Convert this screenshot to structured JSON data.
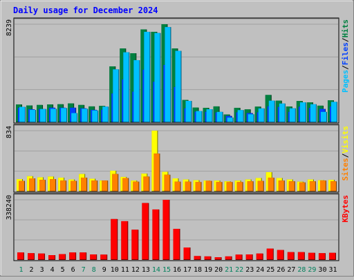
{
  "chart_data": {
    "type": "bar",
    "title": "Daily usage for December 2024",
    "days": [
      1,
      2,
      3,
      4,
      5,
      6,
      7,
      8,
      9,
      10,
      11,
      12,
      13,
      14,
      15,
      16,
      17,
      18,
      19,
      20,
      21,
      22,
      23,
      24,
      25,
      26,
      27,
      28,
      29,
      30,
      31
    ],
    "weekend_days": [
      1,
      7,
      8,
      14,
      15,
      21,
      22,
      28,
      29
    ],
    "colors": {
      "title": "#0000ff",
      "hits": "#008040",
      "files": "#0040ff",
      "pages": "#00c0ff",
      "visits": "#ffff00",
      "sites": "#ff8000",
      "kbytes": "#ff0000",
      "weekend_label": "#00805c",
      "weekday_label": "#000000"
    },
    "panels": [
      {
        "id": "hits-files-pages",
        "max_label": "8239",
        "ymax": 8239,
        "legend": [
          {
            "label": "Pages",
            "color": "#00c0ff"
          },
          {
            "label": "/",
            "color": "#000000"
          },
          {
            "label": "Files",
            "color": "#0040ff"
          },
          {
            "label": "/",
            "color": "#000000"
          },
          {
            "label": "Hits",
            "color": "#008040"
          }
        ],
        "series": [
          {
            "name": "Hits",
            "color": "#008040",
            "values": [
              1500,
              1420,
              1460,
              1500,
              1520,
              1590,
              1460,
              1340,
              1380,
              4700,
              6200,
              5800,
              7800,
              7600,
              8239,
              6200,
              1880,
              1240,
              1220,
              1340,
              660,
              1220,
              1090,
              1320,
              2300,
              1820,
              1330,
              1790,
              1680,
              1400,
              1850
            ]
          },
          {
            "name": "Files",
            "color": "#0040ff",
            "values": [
              1230,
              1100,
              1120,
              1230,
              1230,
              1230,
              1180,
              1050,
              1060,
              2420,
              3600,
              2580,
              4420,
              3410,
              4820,
              2970,
              1180,
              900,
              890,
              830,
              540,
              840,
              780,
              840,
              1350,
              1300,
              880,
              1320,
              1220,
              1130,
              1330
            ]
          },
          {
            "name": "Pages",
            "color": "#00c0ff",
            "values": [
              1300,
              1050,
              1120,
              1140,
              1200,
              780,
              1140,
              1000,
              1320,
              4450,
              5880,
              5220,
              7600,
              7500,
              8000,
              6000,
              1800,
              950,
              1100,
              880,
              400,
              1030,
              680,
              1170,
              1820,
              1580,
              1180,
              1680,
              1520,
              880,
              1720
            ]
          }
        ]
      },
      {
        "id": "visits-sites",
        "max_label": "834",
        "ymax": 834,
        "legend": [
          {
            "label": "Sites",
            "color": "#ff8000"
          },
          {
            "label": "/",
            "color": "#000000"
          },
          {
            "label": "Visits",
            "color": "#ffff00"
          }
        ],
        "series": [
          {
            "name": "Visits",
            "color": "#ffff00",
            "values": [
              170,
              210,
              195,
              205,
              190,
              165,
              240,
              175,
              150,
              285,
              200,
              150,
              245,
              834,
              270,
              180,
              165,
              155,
              150,
              150,
              140,
              150,
              165,
              185,
              265,
              185,
              165,
              135,
              165,
              155,
              160
            ]
          },
          {
            "name": "Sites",
            "color": "#ff8000",
            "values": [
              145,
              180,
              160,
              170,
              150,
              145,
              190,
              150,
              150,
              240,
              185,
              135,
              205,
              520,
              230,
              135,
              135,
              130,
              145,
              130,
              130,
              130,
              140,
              145,
              190,
              150,
              140,
              125,
              140,
              150,
              140
            ]
          }
        ]
      },
      {
        "id": "kbytes",
        "max_label": "338240",
        "ymax": 338240,
        "legend": [
          {
            "label": "KBytes",
            "color": "#ff0000"
          }
        ],
        "series": [
          {
            "name": "KBytes",
            "color": "#ff0000",
            "values": [
              42000,
              38000,
              36000,
              27000,
              33000,
              42000,
              42000,
              31000,
              30000,
              230000,
              218000,
              170000,
              320000,
              284000,
              338240,
              175000,
              70000,
              22000,
              20000,
              15000,
              20000,
              30000,
              31000,
              36000,
              64000,
              56000,
              44000,
              44000,
              40000,
              38000,
              40000
            ]
          }
        ]
      }
    ]
  }
}
